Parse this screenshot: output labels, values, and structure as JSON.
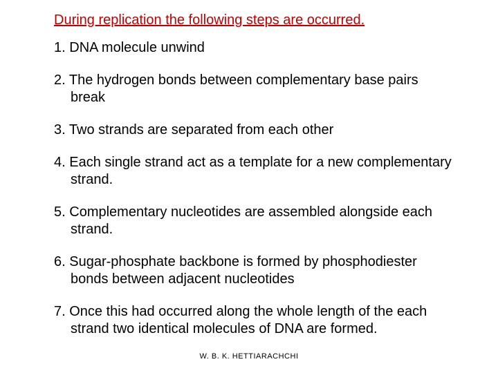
{
  "title": "During replication the following steps are occurred.",
  "title_color": "#c00000",
  "text_color": "#000000",
  "background_color": "#ffffff",
  "title_fontsize": 20,
  "body_fontsize": 20,
  "footer_fontsize": 11,
  "items": [
    {
      "num": "1.",
      "text": "DNA molecule  unwind"
    },
    {
      "num": "2.",
      "text": "The hydrogen bonds between complementary  base pairs  break"
    },
    {
      "num": "3.",
      "text": "Two strands are separated from each other"
    },
    {
      "num": "4.",
      "text": "Each single strand act as a template for a new complementary strand."
    },
    {
      "num": "5.",
      "text": "Complementary nucleotides are assembled alongside each strand."
    },
    {
      "num": "6.",
      "text": "Sugar-phosphate backbone is formed by phosphodiester bonds between adjacent nucleotides"
    },
    {
      "num": "7.",
      "text": "Once this had occurred  along the whole length of the each strand  two identical molecules of DNA  are formed."
    }
  ],
  "footer": "W. B. K. HETTIARACHCHI"
}
